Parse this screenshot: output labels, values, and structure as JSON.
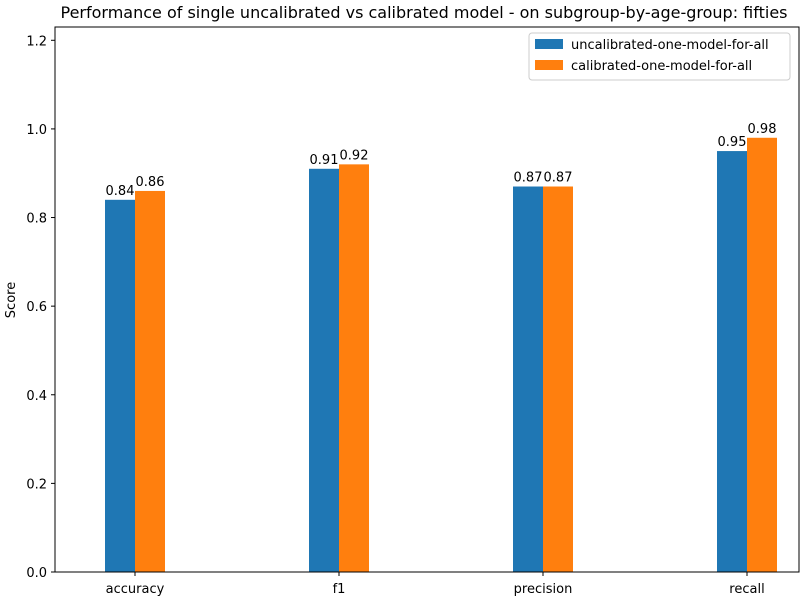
{
  "chart_data": {
    "type": "bar",
    "title": "Performance of single uncalibrated vs calibrated model - on subgroup-by-age-group: fifties",
    "xlabel": "",
    "ylabel": "Score",
    "categories": [
      "accuracy",
      "f1",
      "precision",
      "recall"
    ],
    "series": [
      {
        "name": "uncalibrated-one-model-for-all",
        "values": [
          0.84,
          0.91,
          0.87,
          0.95
        ],
        "color": "#1f77b4"
      },
      {
        "name": "calibrated-one-model-for-all",
        "values": [
          0.86,
          0.92,
          0.87,
          0.98
        ],
        "color": "#ff7f0e"
      }
    ],
    "ylim": [
      0,
      1.23
    ],
    "yticks": [
      "0.0",
      "0.2",
      "0.4",
      "0.6",
      "0.8",
      "1.0",
      "1.2"
    ],
    "grid": false,
    "legend_position": "top-right"
  }
}
